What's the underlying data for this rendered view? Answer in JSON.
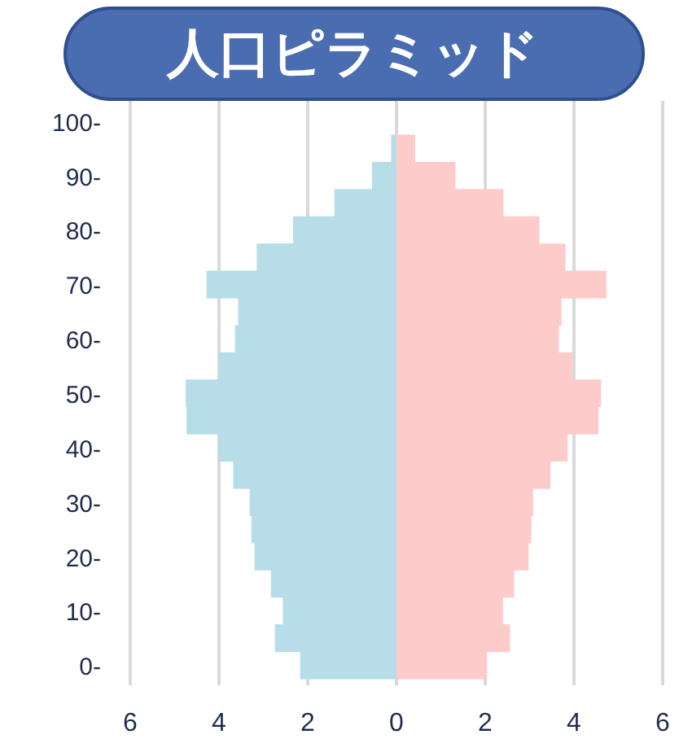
{
  "chart_data": {
    "type": "bar",
    "orientation": "horizontal",
    "stacked": true,
    "title": "人口ピラミッド",
    "categories": [
      "100-",
      null,
      "90-",
      null,
      "80-",
      null,
      "70-",
      null,
      "60-",
      null,
      "50-",
      null,
      "40-",
      null,
      "30-",
      null,
      "20-",
      null,
      "10-",
      null,
      "0-"
    ],
    "series": [
      {
        "color": "#b7dde8",
        "values": [
          0,
          -0.12,
          -0.55,
          -1.4,
          -2.33,
          -3.15,
          -4.28,
          -3.57,
          -3.64,
          -4.01,
          -4.75,
          -4.73,
          -4.02,
          -3.68,
          -3.31,
          -3.27,
          -3.2,
          -2.83,
          -2.56,
          -2.74,
          -2.17
        ]
      },
      {
        "color": "#fecbcb",
        "values": [
          0,
          0.42,
          1.33,
          2.41,
          3.22,
          3.81,
          4.73,
          3.72,
          3.66,
          3.96,
          4.61,
          4.55,
          3.86,
          3.47,
          3.08,
          3.04,
          2.98,
          2.65,
          2.4,
          2.56,
          2.04
        ]
      }
    ],
    "xlim": [
      -6,
      6
    ],
    "xticks": [
      {
        "value": -6,
        "label": "6"
      },
      {
        "value": -4,
        "label": "4"
      },
      {
        "value": -2,
        "label": "2"
      },
      0,
      2,
      4,
      6
    ],
    "grid": "x"
  }
}
